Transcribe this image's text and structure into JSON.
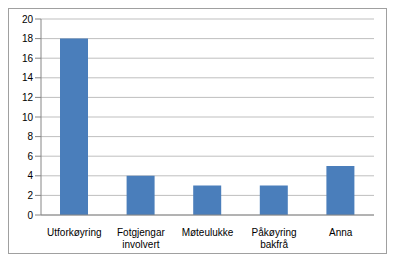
{
  "chart_data": {
    "type": "bar",
    "categories": [
      "Utforkøyring",
      "Fotgjengar involvert",
      "Møteulukke",
      "Påkøyring bakfrå",
      "Anna"
    ],
    "values": [
      18,
      4,
      3,
      3,
      5
    ],
    "color": "#4a7ebb",
    "ylim": [
      0,
      20
    ],
    "yticks": [
      0,
      2,
      4,
      6,
      8,
      10,
      12,
      14,
      16,
      18,
      20
    ],
    "grid": true
  }
}
